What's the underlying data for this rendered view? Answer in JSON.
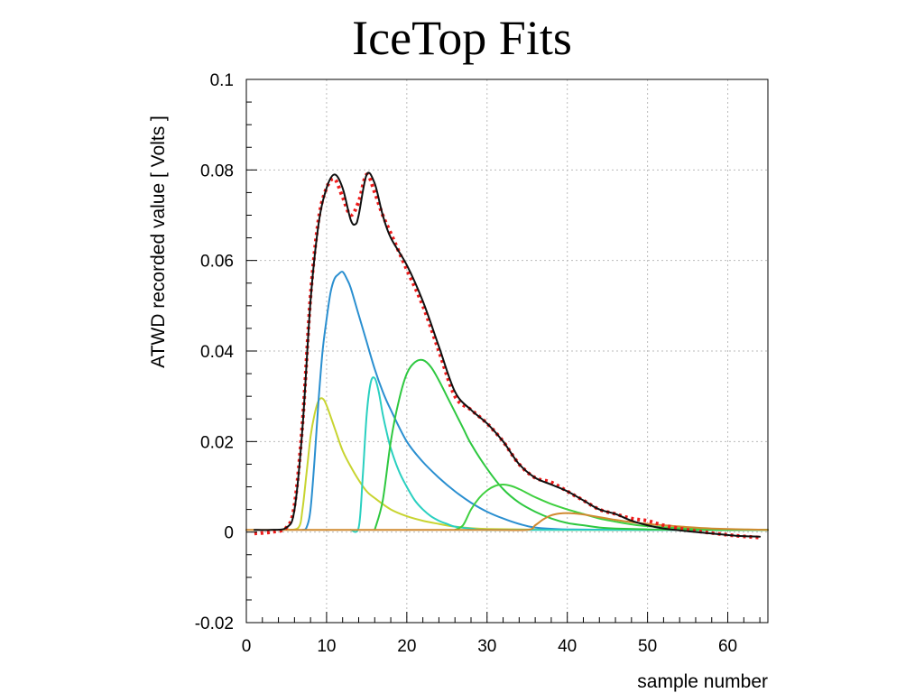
{
  "slide": {
    "title": "IceTop Fits"
  },
  "chart_data": {
    "type": "line",
    "title": "IceTop Fits",
    "xlabel": "sample number",
    "ylabel": "ATWD recorded value [ Volts ]",
    "xlim": [
      0,
      65
    ],
    "ylim": [
      -0.02,
      0.1
    ],
    "xticks": [
      0,
      10,
      20,
      30,
      40,
      50,
      60
    ],
    "xtick_labels": [
      "0",
      "10",
      "20",
      "30",
      "40",
      "50",
      "60"
    ],
    "yticks": [
      -0.02,
      0,
      0.02,
      0.04,
      0.06,
      0.08,
      0.1
    ],
    "ytick_labels": [
      "-0.02",
      "0",
      "0.02",
      "0.04",
      "0.06",
      "0.08",
      "0.1"
    ],
    "grid": true,
    "legend": "none",
    "series": [
      {
        "color": "#ee1c1c",
        "style": "dotted",
        "width": 4,
        "x": [
          1,
          3,
          5,
          6,
          7,
          8,
          9,
          10,
          11,
          12,
          13,
          14,
          15,
          16,
          17,
          18,
          20,
          22,
          24,
          26,
          28,
          30,
          32,
          34,
          36,
          38,
          40,
          42,
          44,
          46,
          48,
          50,
          52,
          55,
          58,
          61,
          64
        ],
        "y": [
          -0.0003,
          0.0,
          0.001,
          0.006,
          0.024,
          0.052,
          0.069,
          0.076,
          0.078,
          0.074,
          0.07,
          0.073,
          0.079,
          0.075,
          0.07,
          0.066,
          0.058,
          0.05,
          0.04,
          0.03,
          0.027,
          0.024,
          0.02,
          0.015,
          0.012,
          0.011,
          0.009,
          0.007,
          0.005,
          0.004,
          0.003,
          0.0025,
          0.0015,
          0.0005,
          -0.0002,
          -0.0008,
          -0.0012
        ]
      },
      {
        "color": "#111111",
        "style": "solid",
        "width": 2,
        "x": [
          1,
          3,
          5,
          6,
          7,
          8,
          9,
          10,
          11,
          12,
          13,
          13.6,
          14,
          15,
          16,
          17,
          18,
          20,
          22,
          24,
          26,
          28,
          30,
          32,
          34,
          36,
          38,
          40,
          42,
          44,
          46,
          48,
          50,
          52,
          55,
          58,
          61,
          64
        ],
        "y": [
          0.0005,
          0.0005,
          0.001,
          0.005,
          0.023,
          0.051,
          0.068,
          0.076,
          0.079,
          0.076,
          0.069,
          0.068,
          0.07,
          0.079,
          0.077,
          0.07,
          0.065,
          0.059,
          0.051,
          0.041,
          0.031,
          0.027,
          0.024,
          0.02,
          0.015,
          0.012,
          0.0105,
          0.009,
          0.007,
          0.005,
          0.004,
          0.0025,
          0.0015,
          0.0008,
          0.0002,
          -0.0003,
          -0.0008,
          -0.001
        ]
      },
      {
        "color": "#c8d430",
        "style": "solid",
        "width": 2,
        "x": [
          5,
          6.5,
          7,
          7.5,
          8,
          8.5,
          9,
          9.5,
          10,
          11,
          12,
          13,
          14,
          15,
          16,
          18,
          20,
          22,
          24,
          26,
          30,
          40,
          50,
          65
        ],
        "y": [
          0.0005,
          0.001,
          0.005,
          0.013,
          0.021,
          0.026,
          0.029,
          0.0295,
          0.028,
          0.023,
          0.018,
          0.0145,
          0.0115,
          0.009,
          0.0075,
          0.005,
          0.0035,
          0.0025,
          0.0018,
          0.0012,
          0.0007,
          0.0005,
          0.0005,
          0.0005
        ]
      },
      {
        "color": "#2a8fd0",
        "style": "solid",
        "width": 2,
        "x": [
          7,
          7.5,
          8,
          8.5,
          9,
          9.5,
          10,
          10.5,
          11,
          11.5,
          12,
          12.5,
          13,
          14,
          15,
          16,
          17,
          18,
          20,
          22,
          24,
          26,
          28,
          30,
          32,
          34,
          36,
          40,
          50,
          65
        ],
        "y": [
          0.0005,
          0.001,
          0.005,
          0.016,
          0.029,
          0.04,
          0.047,
          0.053,
          0.056,
          0.057,
          0.0575,
          0.056,
          0.054,
          0.048,
          0.042,
          0.036,
          0.031,
          0.027,
          0.02,
          0.0155,
          0.012,
          0.009,
          0.0065,
          0.0045,
          0.003,
          0.0018,
          0.001,
          0.0006,
          0.0005,
          0.0005
        ]
      },
      {
        "color": "#2ad0c0",
        "style": "solid",
        "width": 2,
        "x": [
          13,
          14,
          14.5,
          15,
          15.5,
          16,
          16.5,
          17,
          17.5,
          18,
          19,
          20,
          21,
          22,
          23,
          24,
          25,
          26,
          28,
          30,
          40,
          65
        ],
        "y": [
          0.0005,
          0.001,
          0.012,
          0.026,
          0.033,
          0.034,
          0.031,
          0.026,
          0.022,
          0.0185,
          0.0135,
          0.01,
          0.007,
          0.005,
          0.0035,
          0.0025,
          0.0018,
          0.0012,
          0.0008,
          0.0005,
          0.0005,
          0.0005
        ]
      },
      {
        "color": "#2ec840",
        "style": "solid",
        "width": 2,
        "x": [
          16,
          17,
          18,
          19,
          20,
          21,
          22,
          23,
          24,
          25,
          26,
          27,
          28,
          30,
          32,
          34,
          36,
          38,
          40,
          42,
          44,
          46,
          50,
          55,
          65
        ],
        "y": [
          0.0005,
          0.007,
          0.02,
          0.029,
          0.035,
          0.0375,
          0.038,
          0.0365,
          0.0335,
          0.03,
          0.0265,
          0.023,
          0.0195,
          0.014,
          0.0095,
          0.0065,
          0.0045,
          0.003,
          0.002,
          0.0015,
          0.001,
          0.0008,
          0.0006,
          0.0005,
          0.0005
        ]
      },
      {
        "color": "#40d040",
        "style": "solid",
        "width": 2,
        "x": [
          26,
          27,
          28,
          29,
          30,
          31,
          32,
          33,
          34,
          35,
          36,
          38,
          40,
          42,
          44,
          46,
          48,
          50,
          55,
          60,
          65
        ],
        "y": [
          0.0005,
          0.0015,
          0.005,
          0.0075,
          0.0092,
          0.0102,
          0.0105,
          0.0102,
          0.0095,
          0.0086,
          0.0077,
          0.0062,
          0.005,
          0.004,
          0.003,
          0.0023,
          0.0017,
          0.0013,
          0.0008,
          0.0006,
          0.0005
        ]
      },
      {
        "color": "#d08a30",
        "style": "solid",
        "width": 2,
        "x": [
          0,
          10,
          20,
          30,
          35,
          36,
          37,
          38,
          39,
          40,
          41,
          42,
          43,
          44,
          45,
          46,
          48,
          50,
          52,
          55,
          58,
          62,
          65
        ],
        "y": [
          0.0005,
          0.0005,
          0.0005,
          0.0005,
          0.0005,
          0.0015,
          0.0028,
          0.0037,
          0.0041,
          0.0042,
          0.0041,
          0.0039,
          0.0036,
          0.0033,
          0.003,
          0.0027,
          0.0022,
          0.0018,
          0.0015,
          0.0011,
          0.0008,
          0.0006,
          0.0005
        ]
      }
    ]
  }
}
